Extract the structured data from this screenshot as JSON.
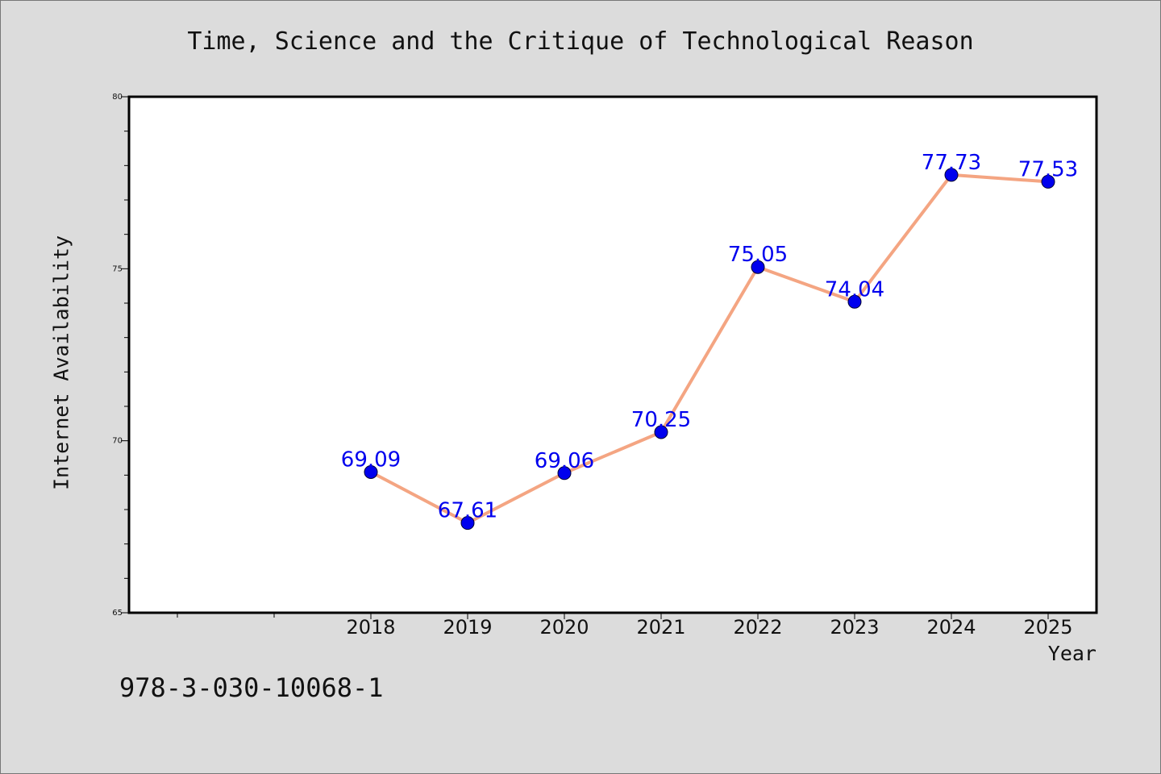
{
  "chart_data": {
    "type": "line",
    "title": "Time, Science and the Critique of Technological Reason",
    "xlabel": "Year",
    "ylabel": "Internet Availability",
    "categories": [
      "2018",
      "2019",
      "2020",
      "2021",
      "2022",
      "2023",
      "2024",
      "2025"
    ],
    "values": [
      69.09,
      67.61,
      69.06,
      70.25,
      75.05,
      74.04,
      77.73,
      77.53
    ],
    "data_labels": [
      "69.09",
      "67.61",
      "69.06",
      "70.25",
      "75.05",
      "74.04",
      "77.73",
      "77.53"
    ],
    "ylim": [
      65,
      80
    ],
    "yticks": [
      "65",
      "70",
      "75",
      "80"
    ],
    "grid": false,
    "legend": "none",
    "line_color": "#f4a582",
    "marker_color": "#0000ee",
    "label_color": "#0000ee"
  },
  "footer": {
    "isbn": "978-3-030-10068-1"
  }
}
